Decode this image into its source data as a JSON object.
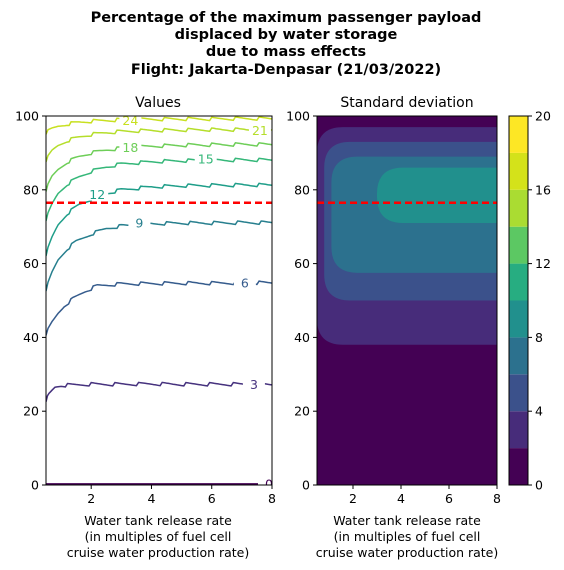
{
  "figure": {
    "title_lines": [
      "Percentage of the maximum passenger payload",
      "displaced by water storage",
      "due to mass effects",
      "Flight: Jakarta-Denpasar (21/03/2022)"
    ]
  },
  "chart_data": [
    {
      "type": "line",
      "title": "Values",
      "xlabel_lines": [
        "Water tank release rate",
        "(in multiples of fuel cell",
        "cruise water production rate)"
      ],
      "ylabel": "",
      "xlim": [
        0.5,
        8
      ],
      "ylim": [
        0,
        100
      ],
      "xticks": [
        2,
        4,
        6,
        8
      ],
      "yticks": [
        0,
        20,
        40,
        60,
        80,
        100
      ],
      "reference_line": {
        "y": 76.5,
        "color": "#ff0000",
        "style": "dashed"
      },
      "series": [
        {
          "name": "0",
          "color": "#440154",
          "x": [
            0.5,
            8
          ],
          "y": [
            0.3,
            0.3
          ],
          "label_at": [
            7.9,
            0.3
          ]
        },
        {
          "name": "3",
          "color": "#46327e",
          "x": [
            0.5,
            0.6,
            0.7,
            0.8,
            1,
            2,
            3,
            4,
            5,
            6,
            7,
            8
          ],
          "y": [
            23,
            24.5,
            25.5,
            26.5,
            27,
            27.3,
            27.3,
            27.4,
            27.3,
            27.3,
            27.3,
            27.3
          ],
          "label_at": [
            7.4,
            27.2
          ]
        },
        {
          "name": "6",
          "color": "#365c8d",
          "x": [
            0.5,
            0.7,
            0.9,
            1.1,
            1.4,
            1.8,
            2.2,
            3,
            4,
            5,
            6,
            7,
            8
          ],
          "y": [
            41,
            44,
            46.5,
            48.5,
            50.5,
            52.5,
            54,
            54.5,
            54.6,
            54.7,
            54.7,
            54.8,
            54.8
          ],
          "label_at": [
            7.1,
            54.8
          ]
        },
        {
          "name": "9",
          "color": "#277f8e",
          "x": [
            0.5,
            0.7,
            0.9,
            1.2,
            1.5,
            2,
            2.5,
            3,
            4,
            5,
            6,
            7,
            8
          ],
          "y": [
            53,
            57.5,
            61,
            64,
            66,
            68,
            69.5,
            70.2,
            70.8,
            71,
            71,
            71.1,
            71.1
          ],
          "label_at": [
            3.6,
            71
          ]
        },
        {
          "name": "12",
          "color": "#1f9e89",
          "x": [
            0.5,
            0.7,
            0.9,
            1.2,
            1.6,
            2,
            2.5,
            3,
            4,
            5,
            6,
            7,
            8
          ],
          "y": [
            62.5,
            67,
            70.5,
            73.5,
            76,
            77.5,
            79,
            80,
            80.8,
            81.1,
            81.2,
            81.3,
            81.3
          ],
          "label_at": [
            2.2,
            78.7
          ]
        },
        {
          "name": "15",
          "color": "#35b779",
          "x": [
            0.5,
            0.7,
            0.9,
            1.2,
            1.6,
            2,
            2.5,
            3,
            4,
            5,
            6,
            7,
            8
          ],
          "y": [
            72,
            76,
            79,
            81.5,
            83.5,
            85,
            86.2,
            87,
            87.6,
            87.9,
            88,
            88.1,
            88.1
          ],
          "label_at": [
            5.8,
            88.4
          ]
        },
        {
          "name": "18",
          "color": "#6ece58",
          "x": [
            0.5,
            0.7,
            0.9,
            1.2,
            1.6,
            2,
            2.5,
            3,
            4,
            5,
            6,
            7,
            8
          ],
          "y": [
            80,
            83.5,
            85.5,
            87.5,
            89,
            90,
            90.8,
            91.3,
            91.8,
            92.1,
            92.2,
            92.3,
            92.3
          ],
          "label_at": [
            3.3,
            91.4
          ]
        },
        {
          "name": "21",
          "color": "#b5de2b",
          "x": [
            0.5,
            0.7,
            0.9,
            1.2,
            1.6,
            2,
            2.5,
            3,
            4,
            5,
            6,
            7,
            8
          ],
          "y": [
            88,
            90.5,
            92,
            93.3,
            94.3,
            95,
            95.5,
            95.8,
            96.1,
            96.2,
            96.3,
            96.3,
            96.3
          ],
          "label_at": [
            7.6,
            96.1
          ]
        },
        {
          "name": "24",
          "color": "#c8e020",
          "x": [
            0.5,
            0.7,
            0.9,
            1.2,
            1.6,
            2,
            2.5,
            3,
            4,
            5,
            6,
            7,
            8
          ],
          "y": [
            95.5,
            96.5,
            97.2,
            97.8,
            98.3,
            98.6,
            98.8,
            99,
            99.1,
            99.2,
            99.2,
            99.3,
            99.3
          ],
          "label_at": [
            3.3,
            98.8
          ]
        }
      ]
    },
    {
      "type": "heatmap",
      "title": "Standard deviation",
      "xlabel_lines": [
        "Water tank release rate",
        "(in multiples of fuel cell",
        "cruise water production rate)"
      ],
      "ylabel": "",
      "xlim": [
        0.5,
        8
      ],
      "ylim": [
        0,
        100
      ],
      "xticks": [
        2,
        4,
        6,
        8
      ],
      "yticks": [
        0,
        20,
        40,
        60,
        80,
        100
      ],
      "reference_line": {
        "y": 76.5,
        "color": "#ff0000",
        "style": "dashed"
      },
      "regions": [
        {
          "level": "0-2",
          "color": "#440154",
          "x0": 0.5,
          "x1": 8,
          "y0": 0,
          "y1": 100
        },
        {
          "level": "2-4",
          "color": "#472c7a",
          "x0": 0.5,
          "x1": 8,
          "y0": 38,
          "y1": 97
        },
        {
          "level": "4-6",
          "color": "#3b518b",
          "x0": 0.8,
          "x1": 8,
          "y0": 50,
          "y1": 93
        },
        {
          "level": "6-8",
          "color": "#2c718e",
          "x0": 1.1,
          "x1": 8,
          "y0": 57.5,
          "y1": 89
        },
        {
          "level": "8-10",
          "color": "#21908d",
          "x0": 3,
          "x1": 8,
          "y0": 71,
          "y1": 86
        }
      ],
      "colorbar": {
        "ticks": [
          0,
          4,
          8,
          12,
          16,
          20
        ],
        "bands": [
          {
            "from": 0,
            "to": 2,
            "color": "#440154"
          },
          {
            "from": 2,
            "to": 4,
            "color": "#472c7a"
          },
          {
            "from": 4,
            "to": 6,
            "color": "#3b518b"
          },
          {
            "from": 6,
            "to": 8,
            "color": "#2c718e"
          },
          {
            "from": 8,
            "to": 10,
            "color": "#21908d"
          },
          {
            "from": 10,
            "to": 12,
            "color": "#27ad81"
          },
          {
            "from": 12,
            "to": 14,
            "color": "#5cc863"
          },
          {
            "from": 14,
            "to": 16,
            "color": "#aadc32"
          },
          {
            "from": 16,
            "to": 18,
            "color": "#d4e21a"
          },
          {
            "from": 18,
            "to": 20,
            "color": "#fde725"
          }
        ]
      }
    }
  ]
}
